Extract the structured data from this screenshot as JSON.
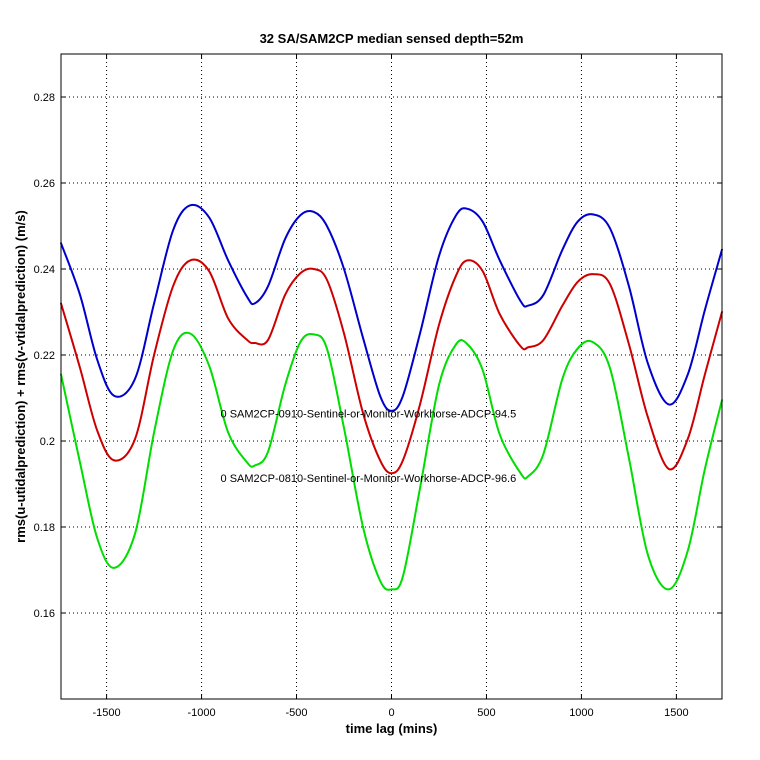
{
  "chart_data": {
    "type": "line",
    "title": "32 SA/SAM2CP median sensed depth=52m",
    "xlabel": "time lag (mins)",
    "ylabel": "rms(u-utidalprediction) + rms(v-vtidalprediction) (m/s)",
    "xlim": [
      -1740,
      1740
    ],
    "ylim": [
      0.14,
      0.29
    ],
    "grid": true,
    "xticks": [
      -1500,
      -1000,
      -500,
      0,
      500,
      1000,
      1500
    ],
    "xtick_labels": [
      "-1500",
      "-1000",
      "-500",
      "0",
      "500",
      "1000",
      "1500"
    ],
    "yticks": [
      0.16,
      0.18,
      0.2,
      0.22,
      0.24,
      0.26,
      0.28
    ],
    "ytick_labels": [
      "0.16",
      "0.18",
      "0.2",
      "0.22",
      "0.24",
      "0.26",
      "0.28"
    ],
    "annotations": [
      {
        "text": "0 SAM2CP-0910-Sentinel-or-Monitor-Workhorse-ADCP-94.5",
        "x": -900,
        "y": 0.2055
      },
      {
        "text": "0 SAM2CP-0810-Sentinel-or-Monitor-Workhorse-ADCP-96.6",
        "x": -900,
        "y": 0.1905
      }
    ],
    "series": [
      {
        "color": "#0000cc",
        "x": [
          -1740,
          -1640,
          -1550,
          -1460,
          -1350,
          -1250,
          -1150,
          -1060,
          -960,
          -860,
          -760,
          -720,
          -650,
          -560,
          -480,
          -410,
          -340,
          -250,
          -150,
          -60,
          0,
          60,
          150,
          250,
          340,
          400,
          480,
          570,
          680,
          720,
          800,
          900,
          980,
          1060,
          1150,
          1250,
          1350,
          1460,
          1560,
          1650,
          1740
        ],
        "y": [
          0.246,
          0.234,
          0.219,
          0.2105,
          0.2145,
          0.232,
          0.249,
          0.2548,
          0.252,
          0.242,
          0.2335,
          0.232,
          0.236,
          0.247,
          0.2525,
          0.2533,
          0.25,
          0.24,
          0.224,
          0.2105,
          0.207,
          0.2105,
          0.225,
          0.243,
          0.2525,
          0.254,
          0.251,
          0.242,
          0.2325,
          0.2315,
          0.234,
          0.2445,
          0.251,
          0.2527,
          0.2495,
          0.236,
          0.218,
          0.2085,
          0.2155,
          0.2305,
          0.2445
        ]
      },
      {
        "color": "#cc0000",
        "x": [
          -1740,
          -1640,
          -1550,
          -1460,
          -1350,
          -1250,
          -1150,
          -1060,
          -960,
          -860,
          -760,
          -720,
          -650,
          -560,
          -480,
          -410,
          -340,
          -250,
          -150,
          -60,
          0,
          60,
          150,
          250,
          340,
          400,
          480,
          570,
          680,
          720,
          800,
          900,
          980,
          1060,
          1150,
          1250,
          1350,
          1460,
          1560,
          1650,
          1740
        ],
        "y": [
          0.232,
          0.217,
          0.2025,
          0.1955,
          0.2005,
          0.22,
          0.236,
          0.242,
          0.2395,
          0.2285,
          0.2235,
          0.2228,
          0.2235,
          0.234,
          0.239,
          0.24,
          0.2375,
          0.225,
          0.2065,
          0.1955,
          0.1925,
          0.1955,
          0.2085,
          0.227,
          0.2385,
          0.242,
          0.2395,
          0.2295,
          0.222,
          0.2218,
          0.2235,
          0.2315,
          0.237,
          0.2388,
          0.2365,
          0.2225,
          0.2055,
          0.1935,
          0.2005,
          0.2155,
          0.23
        ]
      },
      {
        "color": "#00dd00",
        "x": [
          -1740,
          -1640,
          -1550,
          -1460,
          -1350,
          -1250,
          -1150,
          -1060,
          -960,
          -860,
          -760,
          -720,
          -650,
          -560,
          -480,
          -410,
          -340,
          -250,
          -150,
          -60,
          0,
          60,
          150,
          250,
          340,
          400,
          480,
          570,
          680,
          720,
          800,
          900,
          980,
          1060,
          1150,
          1250,
          1350,
          1460,
          1560,
          1650,
          1740
        ],
        "y": [
          0.2155,
          0.195,
          0.1775,
          0.1705,
          0.1785,
          0.202,
          0.221,
          0.225,
          0.2175,
          0.202,
          0.195,
          0.1943,
          0.1975,
          0.213,
          0.223,
          0.2248,
          0.2215,
          0.203,
          0.18,
          0.1675,
          0.1655,
          0.1685,
          0.189,
          0.213,
          0.2225,
          0.2225,
          0.2165,
          0.2015,
          0.1925,
          0.1918,
          0.197,
          0.2145,
          0.2215,
          0.223,
          0.217,
          0.196,
          0.1735,
          0.1655,
          0.1745,
          0.1935,
          0.2095
        ]
      }
    ]
  }
}
